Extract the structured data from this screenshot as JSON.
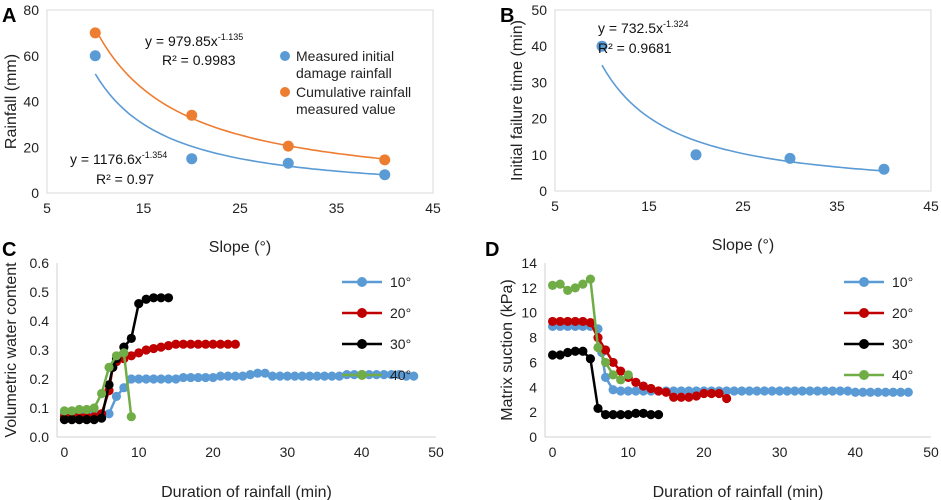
{
  "chart_data": [
    {
      "panel": "A",
      "type": "scatter",
      "xlabel": "Slope (°)",
      "ylabel": "Rainfall (mm)",
      "xlim": [
        5,
        45
      ],
      "ylim": [
        0,
        80
      ],
      "xticks": [
        "5",
        "15",
        "25",
        "35",
        "45"
      ],
      "yticks": [
        "0",
        "20",
        "40",
        "60",
        "80"
      ],
      "legend_position": "right",
      "series": [
        {
          "name": "Measured initial damage rainfall",
          "legend_lines": [
            "Measured initial",
            "damage rainfall"
          ],
          "color": "#5b9bd5",
          "x": [
            10,
            20,
            30,
            40
          ],
          "y": [
            60,
            15,
            13,
            8
          ],
          "fit": {
            "a": 1176.6,
            "b": -1.354
          }
        },
        {
          "name": "Cumulative rainfall measured value",
          "legend_lines": [
            "Cumulative rainfall",
            "measured value"
          ],
          "color": "#ed7d31",
          "x": [
            10,
            20,
            30,
            40
          ],
          "y": [
            70,
            34,
            20.5,
            14.5
          ],
          "fit": {
            "a": 979.85,
            "b": -1.135
          }
        }
      ],
      "annotations": [
        {
          "series": 1,
          "eq_main": "y = 979.85x",
          "eq_exp": "-1.135",
          "r2": "R² = 0.9983"
        },
        {
          "series": 0,
          "eq_main": "y = 1176.6x",
          "eq_exp": "-1.354",
          "r2": "R² = 0.97"
        }
      ]
    },
    {
      "panel": "B",
      "type": "scatter",
      "xlabel": "Slope (°)",
      "ylabel": "Initial failure time (min)",
      "xlim": [
        5,
        45
      ],
      "ylim": [
        0,
        50
      ],
      "xticks": [
        "5",
        "15",
        "25",
        "35",
        "45"
      ],
      "yticks": [
        "0",
        "10",
        "20",
        "30",
        "40",
        "50"
      ],
      "series": [
        {
          "name": "Initial failure time",
          "color": "#5b9bd5",
          "x": [
            10,
            20,
            30,
            40
          ],
          "y": [
            40,
            10,
            9,
            6
          ],
          "fit": {
            "a": 732.5,
            "b": -1.324
          }
        }
      ],
      "annotations": [
        {
          "series": 0,
          "eq_main": "y = 732.5x",
          "eq_exp": "-1.324",
          "r2": "R² = 0.9681"
        }
      ]
    },
    {
      "panel": "C",
      "type": "line",
      "xlabel": "Duration of rainfall (min)",
      "ylabel": "Volumetric water content",
      "xlim": [
        -1,
        50
      ],
      "ylim": [
        0,
        0.6
      ],
      "xticks": [
        0,
        10,
        20,
        30,
        40,
        50
      ],
      "xtick_labels": [
        "0",
        "10",
        "20",
        "30",
        "40",
        "50"
      ],
      "yticks": [
        0,
        0.1,
        0.2,
        0.3,
        0.4,
        0.5,
        0.6
      ],
      "ytick_labels": [
        "0.0",
        "0.1",
        "0.2",
        "0.3",
        "0.4",
        "0.5",
        "0.6"
      ],
      "legend_position": "right",
      "series": [
        {
          "name": "10°",
          "color": "#5b9bd5",
          "x": [
            0,
            1,
            2,
            3,
            4,
            5,
            6,
            7,
            8,
            9,
            10,
            11,
            12,
            13,
            14,
            15,
            16,
            17,
            18,
            19,
            20,
            21,
            22,
            23,
            24,
            25,
            26,
            27,
            28,
            29,
            30,
            31,
            32,
            33,
            34,
            35,
            36,
            37,
            38,
            39,
            40,
            41,
            42,
            43,
            44,
            45,
            46,
            47
          ],
          "y": [
            0.08,
            0.08,
            0.08,
            0.08,
            0.08,
            0.08,
            0.08,
            0.14,
            0.17,
            0.2,
            0.2,
            0.2,
            0.2,
            0.2,
            0.2,
            0.2,
            0.205,
            0.205,
            0.205,
            0.205,
            0.205,
            0.21,
            0.21,
            0.21,
            0.21,
            0.215,
            0.22,
            0.22,
            0.21,
            0.21,
            0.21,
            0.21,
            0.21,
            0.21,
            0.21,
            0.21,
            0.21,
            0.21,
            0.215,
            0.215,
            0.215,
            0.215,
            0.215,
            0.215,
            0.215,
            0.215,
            0.21,
            0.21
          ]
        },
        {
          "name": "20°",
          "color": "#c00000",
          "x": [
            0,
            1,
            2,
            3,
            4,
            5,
            6,
            6.5,
            7,
            8,
            9,
            10,
            11,
            12,
            13,
            14,
            15,
            16,
            17,
            18,
            19,
            20,
            21,
            22,
            23
          ],
          "y": [
            0.07,
            0.07,
            0.07,
            0.07,
            0.07,
            0.08,
            0.16,
            0.24,
            0.26,
            0.27,
            0.28,
            0.29,
            0.3,
            0.305,
            0.31,
            0.315,
            0.32,
            0.32,
            0.32,
            0.32,
            0.32,
            0.32,
            0.32,
            0.32,
            0.32
          ]
        },
        {
          "name": "30°",
          "color": "#000000",
          "x": [
            0,
            1,
            2,
            3,
            4,
            5,
            6,
            6.5,
            7,
            8,
            9,
            10,
            11,
            12,
            13,
            14
          ],
          "y": [
            0.06,
            0.06,
            0.06,
            0.06,
            0.06,
            0.065,
            0.18,
            0.24,
            0.27,
            0.31,
            0.34,
            0.46,
            0.475,
            0.48,
            0.48,
            0.48
          ]
        },
        {
          "name": "40°",
          "color": "#70ad47",
          "x": [
            0,
            1,
            2,
            3,
            4,
            5,
            6,
            7,
            8,
            9
          ],
          "y": [
            0.09,
            0.09,
            0.095,
            0.095,
            0.1,
            0.15,
            0.24,
            0.28,
            0.29,
            0.07
          ]
        }
      ]
    },
    {
      "panel": "D",
      "type": "line",
      "xlabel": "Duration of rainfall (min)",
      "ylabel": "Matrix suction (kPa)",
      "xlim": [
        -1,
        50
      ],
      "ylim": [
        0,
        14
      ],
      "xticks": [
        0,
        10,
        20,
        30,
        40,
        50
      ],
      "xtick_labels": [
        "0",
        "10",
        "20",
        "30",
        "40",
        "50"
      ],
      "yticks": [
        0,
        2,
        4,
        6,
        8,
        10,
        12,
        14
      ],
      "ytick_labels": [
        "0",
        "2",
        "4",
        "6",
        "8",
        "10",
        "12",
        "14"
      ],
      "legend_position": "right",
      "series": [
        {
          "name": "10°",
          "color": "#5b9bd5",
          "x": [
            0,
            1,
            2,
            3,
            4,
            5,
            6,
            6.5,
            7,
            8,
            9,
            10,
            11,
            12,
            13,
            14,
            15,
            16,
            17,
            18,
            19,
            20,
            21,
            22,
            23,
            24,
            25,
            26,
            27,
            28,
            29,
            30,
            31,
            32,
            33,
            34,
            35,
            36,
            37,
            38,
            39,
            40,
            41,
            42,
            43,
            44,
            45,
            46,
            47
          ],
          "y": [
            8.9,
            8.9,
            8.9,
            8.9,
            8.9,
            8.9,
            8.7,
            6.8,
            4.8,
            3.8,
            3.7,
            3.7,
            3.7,
            3.7,
            3.7,
            3.7,
            3.7,
            3.7,
            3.7,
            3.7,
            3.7,
            3.7,
            3.7,
            3.7,
            3.7,
            3.7,
            3.7,
            3.7,
            3.7,
            3.7,
            3.7,
            3.7,
            3.7,
            3.7,
            3.7,
            3.7,
            3.7,
            3.7,
            3.7,
            3.7,
            3.7,
            3.6,
            3.6,
            3.6,
            3.6,
            3.6,
            3.6,
            3.6,
            3.6
          ]
        },
        {
          "name": "20°",
          "color": "#c00000",
          "x": [
            0,
            1,
            2,
            3,
            4,
            5,
            6,
            7,
            8,
            9,
            10,
            11,
            12,
            13,
            14,
            15,
            16,
            17,
            18,
            19,
            20,
            21,
            22,
            23
          ],
          "y": [
            9.3,
            9.3,
            9.3,
            9.3,
            9.3,
            9.2,
            8.0,
            7.0,
            6.0,
            5.3,
            4.8,
            4.4,
            4.1,
            3.9,
            3.7,
            3.6,
            3.2,
            3.2,
            3.2,
            3.3,
            3.5,
            3.5,
            3.5,
            3.1
          ]
        },
        {
          "name": "30°",
          "color": "#000000",
          "x": [
            0,
            1,
            2,
            3,
            4,
            5,
            6,
            7,
            8,
            9,
            10,
            11,
            12,
            13,
            14
          ],
          "y": [
            6.6,
            6.6,
            6.8,
            6.9,
            6.9,
            6.3,
            2.3,
            1.8,
            1.8,
            1.8,
            1.8,
            1.9,
            1.9,
            1.8,
            1.8
          ]
        },
        {
          "name": "40°",
          "color": "#70ad47",
          "x": [
            0,
            1,
            2,
            3,
            4,
            5,
            6,
            7,
            8,
            9,
            10
          ],
          "y": [
            12.2,
            12.3,
            11.8,
            12.0,
            12.3,
            12.7,
            7.2,
            6.0,
            5.0,
            4.6,
            5.0
          ]
        }
      ]
    }
  ]
}
